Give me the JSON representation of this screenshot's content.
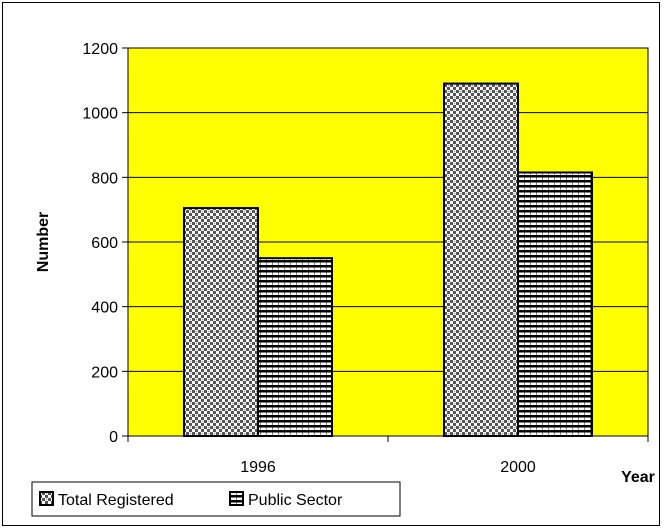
{
  "chart_data": {
    "type": "bar",
    "categories": [
      "1996",
      "2000"
    ],
    "series": [
      {
        "name": "Total Registered",
        "values": [
          705,
          1090
        ],
        "pattern": "checker"
      },
      {
        "name": "Public Sector",
        "values": [
          550,
          815
        ],
        "pattern": "hlines"
      }
    ],
    "ylabel": "Number",
    "xlabel": "Year",
    "ylim": [
      0,
      1200
    ],
    "yticks": [
      0,
      200,
      400,
      600,
      800,
      1000,
      1200
    ],
    "plot_background": "#FFFF00",
    "grid": true,
    "legend": "bottom-left"
  }
}
